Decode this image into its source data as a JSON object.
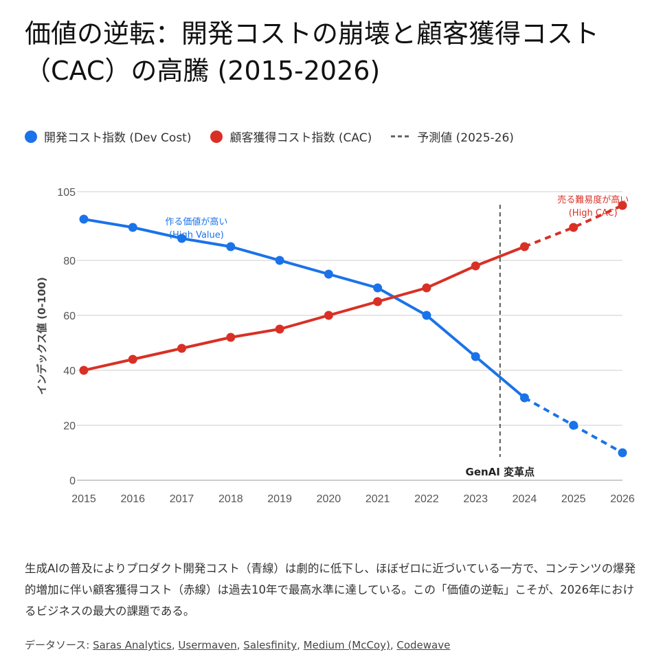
{
  "title_line1": "価値の逆転：開発コストの崩壊と顧客獲得コスト",
  "title_line2": "（CAC）の高騰 (2015-2026)",
  "legend": [
    {
      "label": "開発コスト指数 (Dev Cost)",
      "color": "#1a73e8"
    },
    {
      "label": "顧客獲得コスト指数 (CAC)",
      "color": "#d93025"
    },
    {
      "label": "予測値 (2025-26)",
      "color": "#666666"
    }
  ],
  "chart_data": {
    "type": "line",
    "x": [
      "2015",
      "2016",
      "2017",
      "2018",
      "2019",
      "2020",
      "2021",
      "2022",
      "2023",
      "2024",
      "2025",
      "2026"
    ],
    "series": [
      {
        "name": "開発コスト指数 (Dev Cost)",
        "color": "#1a73e8",
        "values": [
          95,
          92,
          88,
          85,
          80,
          75,
          70,
          60,
          45,
          30,
          20,
          10
        ],
        "forecast_from": "2024"
      },
      {
        "name": "顧客獲得コスト指数 (CAC)",
        "color": "#d93025",
        "values": [
          40,
          44,
          48,
          52,
          55,
          60,
          65,
          70,
          78,
          85,
          92,
          100
        ],
        "forecast_from": "2024"
      }
    ],
    "ylabel": "インデックス値 (0-100)",
    "xlabel": "",
    "ylim": [
      0,
      105
    ],
    "yticks": [
      0,
      20,
      40,
      60,
      80,
      105
    ],
    "grid": true,
    "legend_position": "top-left",
    "annotations": [
      {
        "text1": "作る価値が高い",
        "text2": "(High Value)",
        "color": "#1a73e8",
        "x": 2017.3,
        "y": 93
      },
      {
        "text1": "売る難易度が高い",
        "text2": "(High CAC)",
        "color": "#d93025",
        "x": 2025.4,
        "y": 101
      },
      {
        "text": "GenAI 変革点",
        "x": 2023.5,
        "type": "vline"
      }
    ]
  },
  "description": "生成AIの普及によりプロダクト開発コスト（青線）は劇的に低下し、ほぼゼロに近づいている一方で、コンテンツの爆発的増加に伴い顧客獲得コスト（赤線）は過去10年で最高水準に達している。この「価値の逆転」こそが、2026年におけるビジネスの最大の課題である。",
  "source_label": "データソース: ",
  "sources": [
    "Saras Analytics",
    "Usermaven",
    "Salesfinity",
    "Medium (McCoy)",
    "Codewave"
  ]
}
